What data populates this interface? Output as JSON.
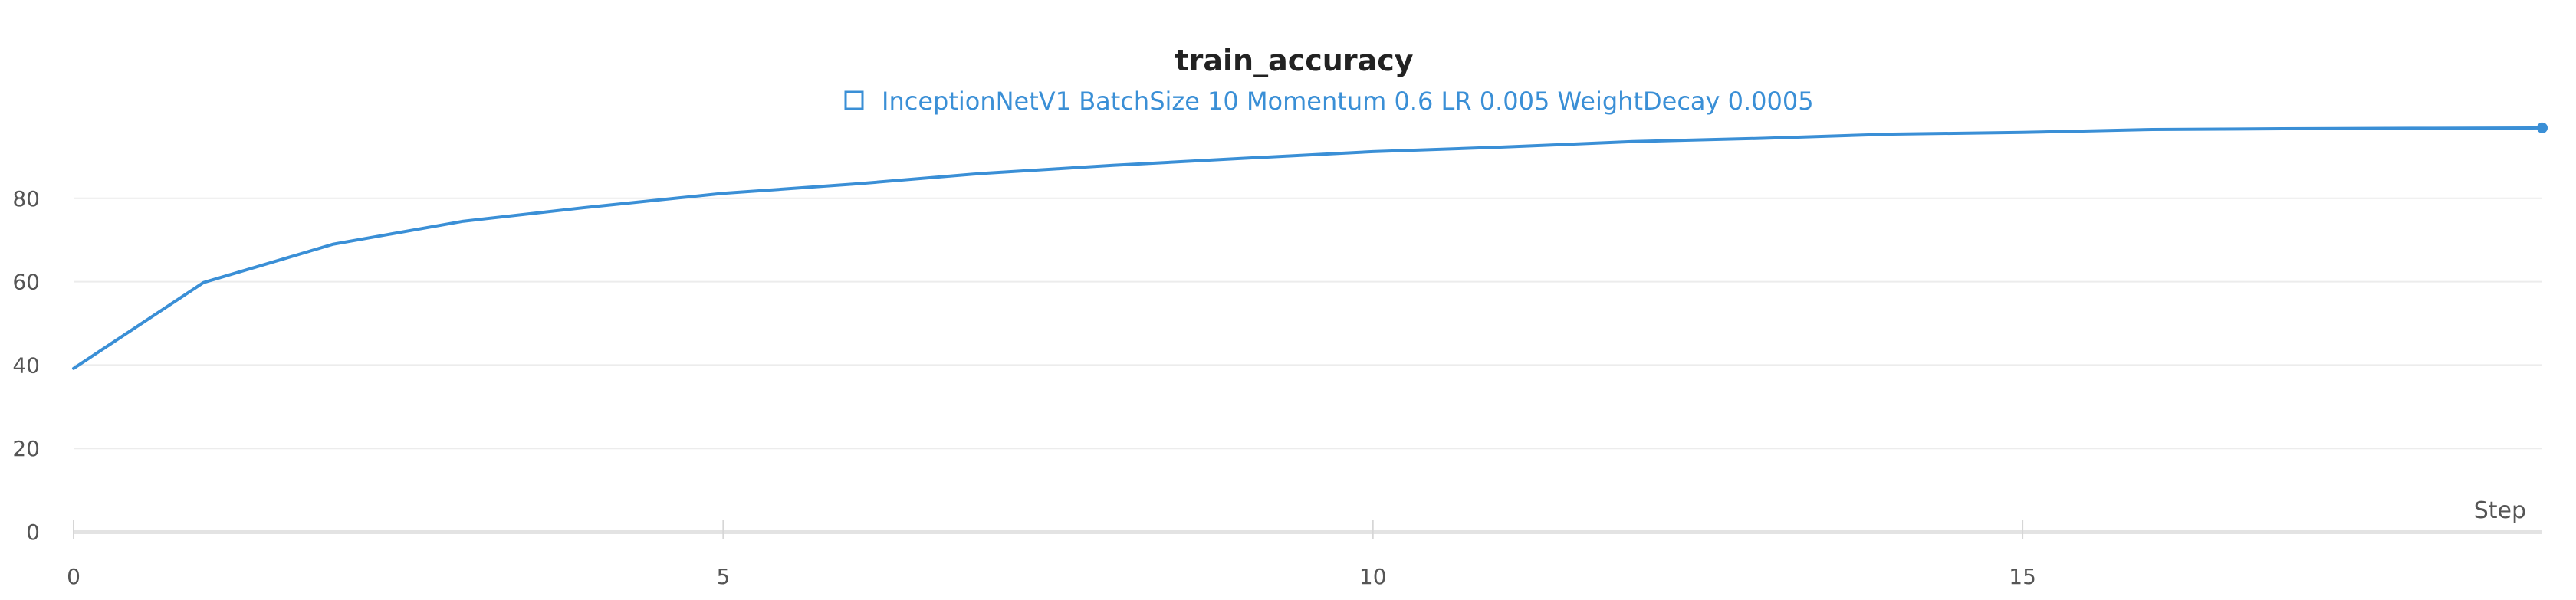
{
  "chart_data": {
    "type": "line",
    "title": "train_accuracy",
    "xlabel": "Step",
    "ylabel": "",
    "xlim": [
      0,
      19
    ],
    "ylim": [
      0,
      100
    ],
    "x_ticks": [
      0,
      5,
      10,
      15
    ],
    "y_ticks": [
      0,
      20,
      40,
      60,
      80
    ],
    "grid": true,
    "legend_position": "top-center",
    "series": [
      {
        "name": "InceptionNetV1 BatchSize 10 Momentum 0.6 LR 0.005 WeightDecay 0.0005",
        "color": "#3a8fd6",
        "x": [
          0,
          1,
          2,
          3,
          4,
          5,
          6,
          7,
          8,
          9,
          10,
          11,
          12,
          13,
          14,
          15,
          16,
          17,
          18,
          19
        ],
        "values": [
          39.2,
          59.8,
          69.0,
          74.5,
          78.0,
          81.2,
          83.4,
          86.0,
          87.9,
          89.6,
          91.2,
          92.3,
          93.6,
          94.4,
          95.4,
          95.8,
          96.5,
          96.7,
          96.8,
          96.9
        ]
      }
    ]
  }
}
